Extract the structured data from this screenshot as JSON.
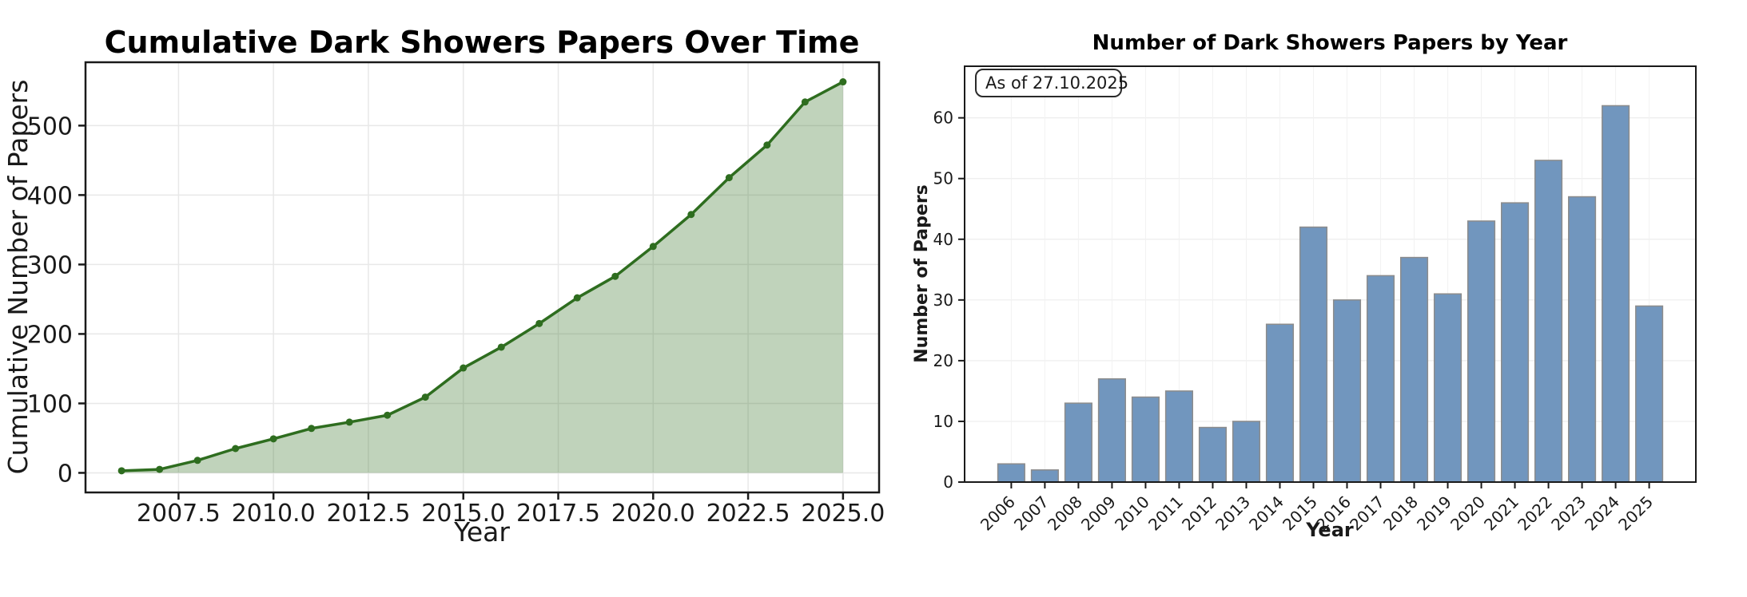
{
  "page": {
    "background": "#ffffff",
    "annotation_label": "As of 27.10.2025"
  },
  "chart_data": [
    {
      "type": "area",
      "title": "Cumulative Dark Showers Papers Over Time",
      "xlabel": "Year",
      "ylabel": "Cumulative Number of Papers",
      "x": [
        2006,
        2007,
        2008,
        2009,
        2010,
        2011,
        2012,
        2013,
        2014,
        2015,
        2016,
        2017,
        2018,
        2019,
        2020,
        2021,
        2022,
        2023,
        2024,
        2025
      ],
      "values": [
        3,
        5,
        18,
        35,
        49,
        64,
        73,
        83,
        109,
        151,
        181,
        215,
        252,
        283,
        326,
        372,
        425,
        472,
        534,
        563
      ],
      "x_tick_values": [
        2007.5,
        2010.0,
        2012.5,
        2015.0,
        2017.5,
        2020.0,
        2022.5,
        2025.0
      ],
      "x_tick_labels": [
        "2007.5",
        "2010.0",
        "2012.5",
        "2015.0",
        "2017.5",
        "2020.0",
        "2022.5",
        "2025.0"
      ],
      "y_ticks": [
        0,
        100,
        200,
        300,
        400,
        500
      ],
      "xlim": [
        2005.05,
        2025.95
      ],
      "ylim": [
        -28.2,
        591.2
      ],
      "grid": true,
      "legend": "none",
      "line_color": "#2e6d1f",
      "fill_color": "rgba(46,109,31,0.30)"
    },
    {
      "type": "bar",
      "title": "Number of Dark Showers Papers by Year",
      "xlabel": "Year",
      "ylabel": "Number of Papers",
      "annotation": "As of 27.10.2025",
      "categories": [
        "2006",
        "2007",
        "2008",
        "2009",
        "2010",
        "2011",
        "2012",
        "2013",
        "2014",
        "2015",
        "2016",
        "2017",
        "2018",
        "2019",
        "2020",
        "2021",
        "2022",
        "2023",
        "2024",
        "2025"
      ],
      "values": [
        3,
        2,
        13,
        17,
        14,
        15,
        9,
        10,
        26,
        42,
        30,
        34,
        37,
        31,
        43,
        46,
        53,
        47,
        62,
        29
      ],
      "y_ticks": [
        0,
        10,
        20,
        30,
        40,
        50,
        60
      ],
      "ylim": [
        0,
        68.5
      ],
      "grid": true,
      "legend": "none",
      "bar_color": "#7196be",
      "bar_edge_color": "#8c8c8c"
    }
  ]
}
